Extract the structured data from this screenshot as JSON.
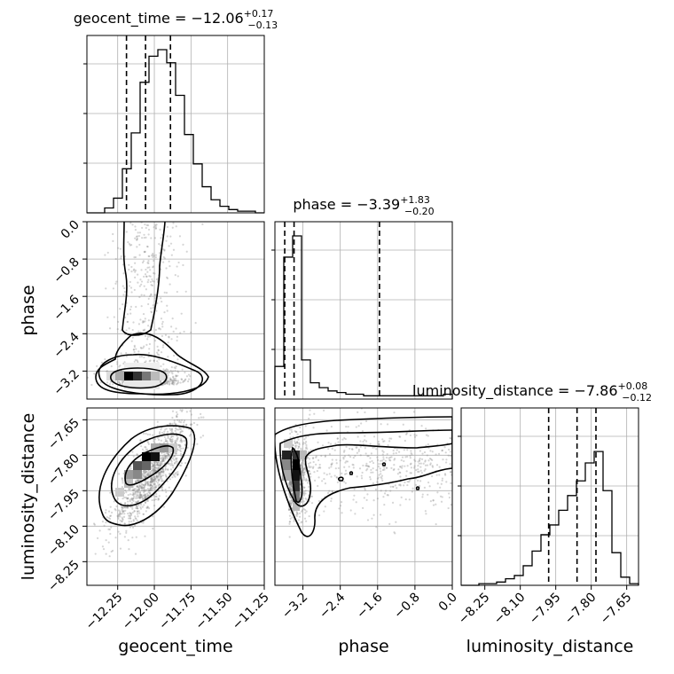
{
  "chart_data": {
    "type": "corner",
    "parameters": [
      "geocent_time",
      "phase",
      "luminosity_distance"
    ],
    "titles": [
      {
        "name": "geocent_time",
        "median": "-12.06",
        "plus": "+0.17",
        "minus": "-0.13"
      },
      {
        "name": "phase",
        "median": "-3.39",
        "plus": "+1.83",
        "minus": "-0.20"
      },
      {
        "name": "luminosity_distance",
        "median": "-7.86",
        "plus": "+0.08",
        "minus": "-0.12"
      }
    ],
    "ranges": {
      "geocent_time": [
        -12.46,
        -11.25
      ],
      "phase": [
        -3.8,
        0.0
      ],
      "luminosity_distance": [
        -8.35,
        -7.6
      ]
    },
    "ticks": {
      "geocent_time": {
        "values": [
          -12.25,
          -12.0,
          -11.75,
          -11.5,
          -11.25
        ],
        "labels": [
          "−12.25",
          "−12.00",
          "−11.75",
          "−11.50",
          "−11.25"
        ]
      },
      "phase": {
        "values": [
          -3.2,
          -2.4,
          -1.6,
          -0.8,
          0.0
        ],
        "labels": [
          "−3.2",
          "−2.4",
          "−1.6",
          "−0.8",
          "0.0"
        ]
      },
      "luminosity_distance": {
        "values": [
          -8.25,
          -8.1,
          -7.95,
          -7.8,
          -7.65
        ],
        "labels": [
          "−8.25",
          "−8.10",
          "−7.95",
          "−7.80",
          "−7.65"
        ]
      }
    },
    "quantiles": {
      "geocent_time": [
        -12.19,
        -12.06,
        -11.89
      ],
      "phase": [
        -3.59,
        -3.39,
        -1.56
      ],
      "luminosity_distance": [
        -7.98,
        -7.86,
        -7.78
      ]
    },
    "histograms": {
      "geocent_time": [
        0.0,
        0.0,
        0.03,
        0.09,
        0.27,
        0.49,
        0.8,
        0.96,
        1.0,
        0.92,
        0.72,
        0.48,
        0.3,
        0.16,
        0.08,
        0.04,
        0.02,
        0.01,
        0.01,
        0.0
      ],
      "phase": [
        0.2,
        0.87,
        1.0,
        0.24,
        0.1,
        0.07,
        0.05,
        0.04,
        0.03,
        0.03,
        0.02,
        0.02,
        0.02,
        0.02,
        0.02,
        0.02,
        0.02,
        0.02,
        0.02,
        0.03
      ],
      "luminosity_distance": [
        0.0,
        0.0,
        0.01,
        0.01,
        0.02,
        0.04,
        0.06,
        0.12,
        0.21,
        0.31,
        0.37,
        0.46,
        0.55,
        0.64,
        0.75,
        0.82,
        0.58,
        0.2,
        0.05,
        0.01
      ]
    },
    "grid": true
  }
}
